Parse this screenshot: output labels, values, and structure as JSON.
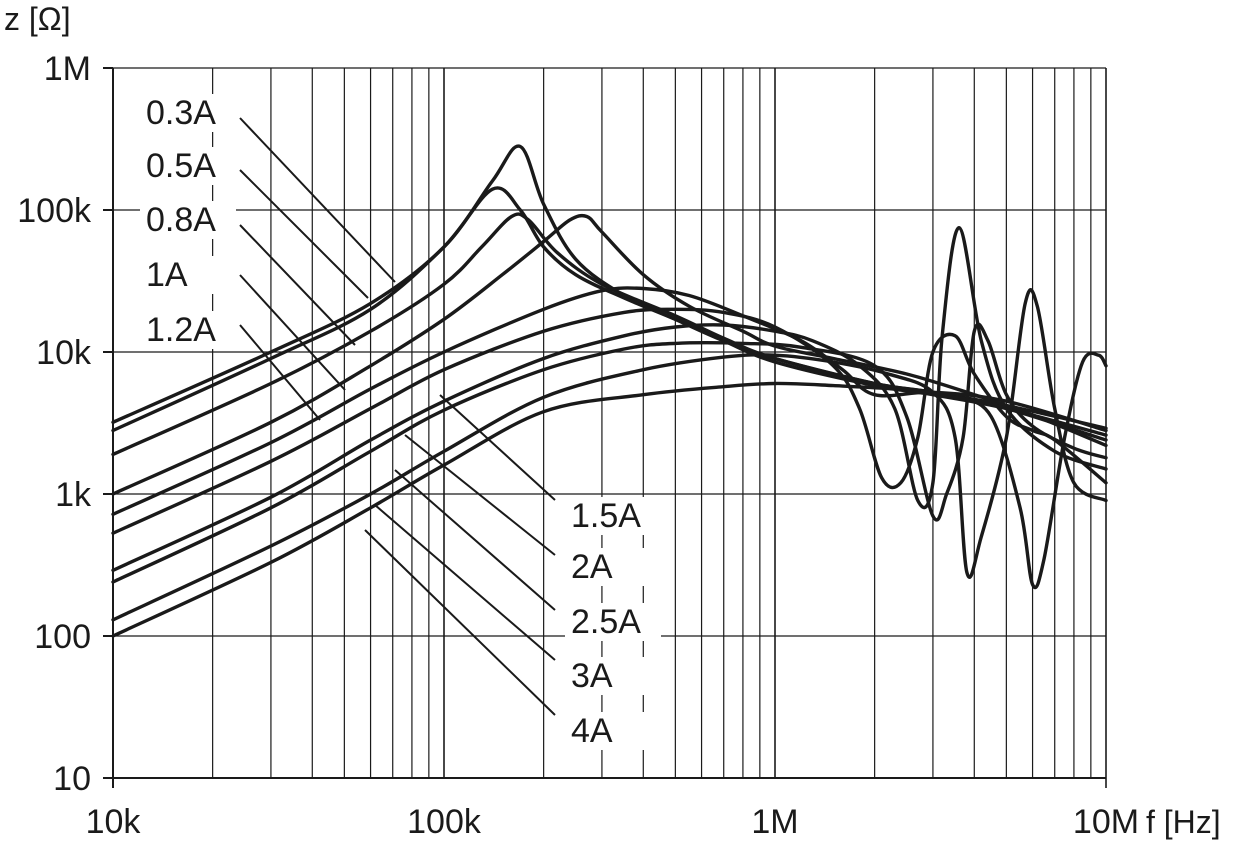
{
  "chart_data": {
    "type": "line",
    "title": "",
    "xlabel": "f [Hz]",
    "ylabel": "z [Ω]",
    "x_scale": "log",
    "y_scale": "log",
    "xlim": [
      10000,
      10000000
    ],
    "ylim": [
      10,
      1000000
    ],
    "grid": true,
    "x_ticks": [
      {
        "value": 10000,
        "label": "10k"
      },
      {
        "value": 100000,
        "label": "100k"
      },
      {
        "value": 1000000,
        "label": "1M"
      },
      {
        "value": 10000000,
        "label": "10M"
      }
    ],
    "y_ticks": [
      {
        "value": 10,
        "label": "10"
      },
      {
        "value": 100,
        "label": "100"
      },
      {
        "value": 1000,
        "label": "1k"
      },
      {
        "value": 10000,
        "label": "10k"
      },
      {
        "value": 100000,
        "label": "100k"
      },
      {
        "value": 1000000,
        "label": "1M"
      }
    ],
    "series": [
      {
        "name": "0.3A",
        "x": [
          10000,
          30000,
          60000,
          100000,
          140000,
          170000,
          200000,
          250000,
          350000,
          500000,
          700000,
          1000000,
          2000000,
          3000000,
          5000000,
          10000000
        ],
        "y": [
          3200,
          10000,
          22000,
          55000,
          160000,
          280000,
          110000,
          45000,
          25000,
          17000,
          12000,
          9000,
          6000,
          5200,
          4200,
          2900
        ]
      },
      {
        "name": "0.5A",
        "x": [
          10000,
          30000,
          60000,
          100000,
          140000,
          170000,
          200000,
          250000,
          350000,
          500000,
          700000,
          1000000,
          2000000,
          3000000,
          5000000,
          10000000
        ],
        "y": [
          2800,
          9000,
          20000,
          55000,
          140000,
          100000,
          55000,
          35000,
          24000,
          17000,
          12000,
          8500,
          5800,
          5000,
          4000,
          2600
        ]
      },
      {
        "name": "0.8A",
        "x": [
          10000,
          30000,
          60000,
          100000,
          130000,
          160000,
          180000,
          220000,
          300000,
          500000,
          700000,
          1000000,
          2000000,
          3000000,
          5000000,
          10000000
        ],
        "y": [
          1900,
          6000,
          14000,
          30000,
          55000,
          90000,
          85000,
          50000,
          30000,
          18000,
          12500,
          9000,
          6000,
          5200,
          4000,
          2400
        ]
      },
      {
        "name": "1A",
        "x": [
          10000,
          30000,
          60000,
          100000,
          150000,
          200000,
          240000,
          270000,
          300000,
          400000,
          550000,
          800000,
          1000000,
          1500000,
          2500000,
          4000000,
          6000000,
          10000000
        ],
        "y": [
          1000,
          3200,
          8000,
          17000,
          35000,
          60000,
          85000,
          90000,
          70000,
          35000,
          21000,
          14000,
          11000,
          9000,
          7000,
          5000,
          3600,
          2200
        ]
      },
      {
        "name": "1.2A",
        "x": [
          10000,
          30000,
          60000,
          100000,
          200000,
          300000,
          400000,
          550000,
          800000,
          1200000,
          1600000,
          2000000,
          3000000,
          5000000,
          10000000
        ],
        "y": [
          720,
          2300,
          5500,
          10000,
          20000,
          27000,
          28000,
          25000,
          18000,
          12000,
          7500,
          5000,
          5200,
          4500,
          2800
        ]
      },
      {
        "name": "1.5A",
        "x": [
          10000,
          30000,
          60000,
          100000,
          200000,
          350000,
          500000,
          700000,
          1000000,
          1500000,
          1800000,
          2100000,
          2400000,
          2700000,
          3000000,
          3500000,
          4000000,
          5000000,
          6000000,
          7000000,
          10000000
        ],
        "y": [
          530,
          1700,
          4000,
          7500,
          14000,
          19000,
          20000,
          19000,
          15000,
          8000,
          4000,
          1300,
          1200,
          2500,
          10000,
          13000,
          7000,
          3500,
          2800,
          2400,
          1200
        ]
      },
      {
        "name": "2A",
        "x": [
          10000,
          30000,
          60000,
          100000,
          200000,
          350000,
          500000,
          700000,
          1000000,
          1300000,
          1800000,
          2300000,
          2700000,
          3000000,
          3200000,
          3600000,
          4200000,
          5000000,
          7000000,
          10000000
        ],
        "y": [
          290,
          950,
          2400,
          4500,
          9000,
          13000,
          15000,
          15500,
          14000,
          12000,
          8000,
          4000,
          900,
          1200,
          13000,
          75000,
          12000,
          4000,
          2000,
          1500
        ]
      },
      {
        "name": "2.5A",
        "x": [
          10000,
          30000,
          60000,
          100000,
          200000,
          350000,
          500000,
          800000,
          1200000,
          2000000,
          2500000,
          3000000,
          3300000,
          3700000,
          4000000,
          4400000,
          5000000,
          6000000,
          8000000,
          10000000
        ],
        "y": [
          240,
          800,
          2000,
          3900,
          7500,
          10500,
          11500,
          11500,
          10800,
          8000,
          3500,
          700,
          1000,
          2500,
          14000,
          12000,
          5000,
          3000,
          2100,
          1800
        ]
      },
      {
        "name": "3A",
        "x": [
          10000,
          30000,
          60000,
          100000,
          200000,
          400000,
          700000,
          1000000,
          1500000,
          2200000,
          3000000,
          3500000,
          3800000,
          4200000,
          5000000,
          5700000,
          6200000,
          7000000,
          8000000,
          10000000
        ],
        "y": [
          130,
          430,
          1000,
          2000,
          4800,
          7500,
          9200,
          9500,
          8500,
          7000,
          5200,
          2500,
          280,
          500,
          2500,
          22000,
          21000,
          4000,
          1200,
          900
        ]
      },
      {
        "name": "4A",
        "x": [
          10000,
          30000,
          60000,
          100000,
          200000,
          400000,
          700000,
          1000000,
          1500000,
          2500000,
          3500000,
          4500000,
          5500000,
          6000000,
          6500000,
          7500000,
          8500000,
          9500000,
          10000000
        ],
        "y": [
          100,
          330,
          800,
          1600,
          3800,
          5000,
          5700,
          6000,
          5800,
          5400,
          4800,
          3500,
          800,
          230,
          350,
          2500,
          8500,
          9500,
          8000
        ]
      }
    ],
    "series_labels": [
      {
        "text": "0.3A",
        "series": "0.3A"
      },
      {
        "text": "0.5A",
        "series": "0.5A"
      },
      {
        "text": "0.8A",
        "series": "0.8A"
      },
      {
        "text": "1A",
        "series": "1A"
      },
      {
        "text": "1.2A",
        "series": "1.2A"
      },
      {
        "text": "1.5A",
        "series": "1.5A"
      },
      {
        "text": "2A",
        "series": "2A"
      },
      {
        "text": "2.5A",
        "series": "2.5A"
      },
      {
        "text": "3A",
        "series": "3A"
      },
      {
        "text": "4A",
        "series": "4A"
      }
    ]
  }
}
